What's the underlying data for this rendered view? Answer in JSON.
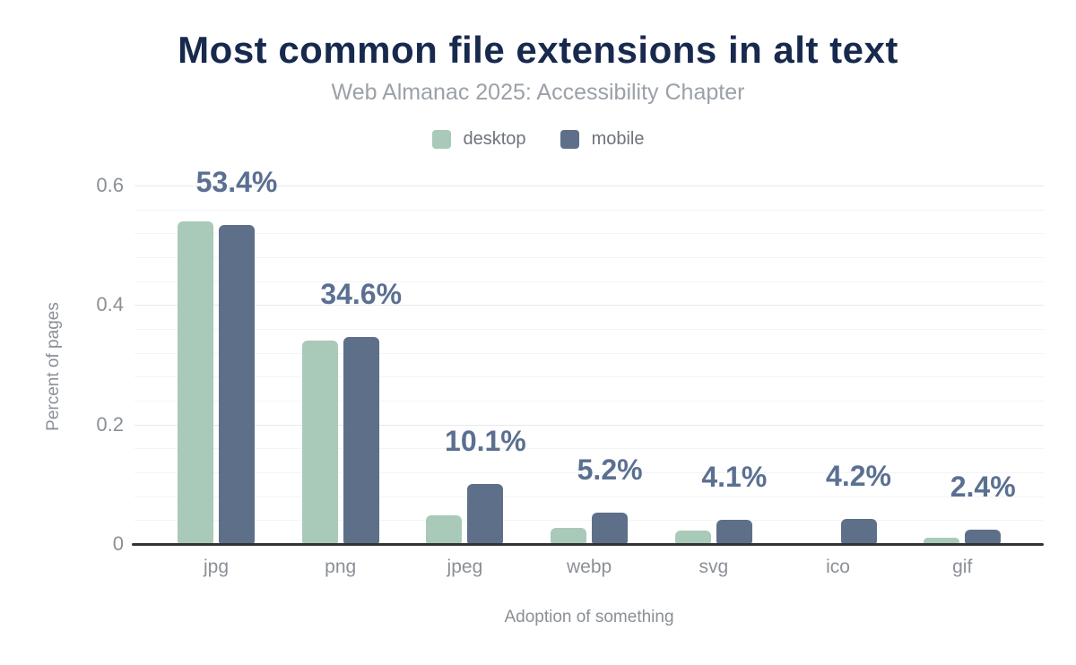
{
  "header": {
    "title": "Most common file extensions in alt text",
    "subtitle": "Web Almanac 2025: Accessibility Chapter"
  },
  "legend": [
    {
      "label": "desktop",
      "color": "#a9cab8"
    },
    {
      "label": "mobile",
      "color": "#5e7089"
    }
  ],
  "chart_data": {
    "type": "bar",
    "categories": [
      "jpg",
      "png",
      "jpeg",
      "webp",
      "svg",
      "ico",
      "gif"
    ],
    "series": [
      {
        "name": "desktop",
        "color": "#a9cab8",
        "values": [
          0.54,
          0.341,
          0.048,
          0.027,
          0.023,
          0.0,
          0.01
        ]
      },
      {
        "name": "mobile",
        "color": "#5e7089",
        "values": [
          0.534,
          0.346,
          0.101,
          0.052,
          0.041,
          0.042,
          0.024
        ]
      }
    ],
    "data_labels": [
      "53.4%",
      "34.6%",
      "10.1%",
      "5.2%",
      "4.1%",
      "4.2%",
      "2.4%"
    ],
    "data_labels_follow_series": "mobile",
    "title": "Most common file extensions in alt text",
    "subtitle": "Web Almanac 2025: Accessibility Chapter",
    "xlabel": "Adoption of something",
    "ylabel": "Percent of pages",
    "ylim": [
      0,
      0.6
    ],
    "y_ticks": [
      0,
      0.2,
      0.4,
      0.6
    ],
    "y_tick_labels": [
      "0",
      "0.2",
      "0.4",
      "0.6"
    ],
    "minor_grid_step": 0.04,
    "grid": true,
    "legend_position": "top"
  },
  "colors": {
    "title_text": "#18294e",
    "subtitle_text": "#9ba1a8",
    "value_label_text": "#5b7091",
    "axis_text": "#8b9097",
    "axis_line": "#323336",
    "desktop_bar": "#a9cab8",
    "mobile_bar": "#5e7089"
  }
}
